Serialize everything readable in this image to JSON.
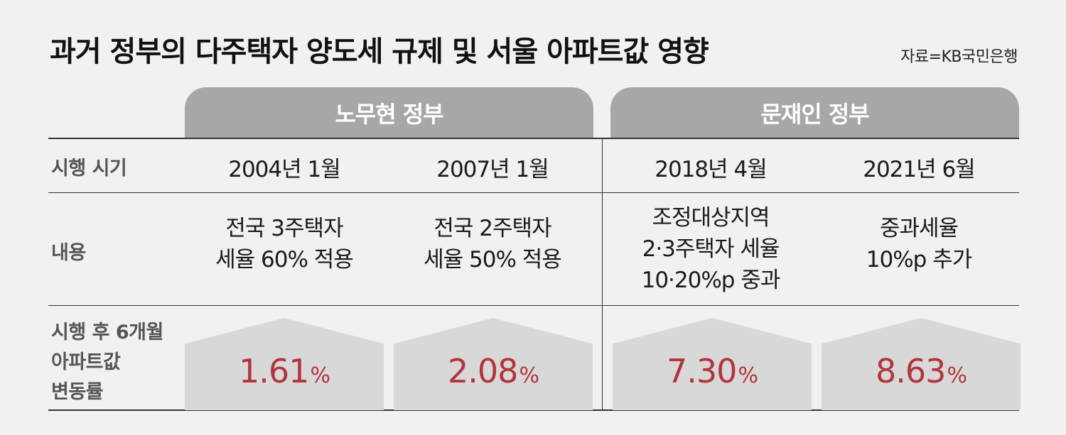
{
  "title": "과거 정부의 다주택자 양도세 규제 및 서울 아파트값 영향",
  "source": "자료=KB국민은행",
  "headers": {
    "roh": "노무현 정부",
    "moon": "문재인 정부"
  },
  "row_labels": {
    "date": "시행 시기",
    "content": "내용",
    "change_line1": "시행 후 6개월",
    "change_line2": "아파트값",
    "change_line3": "변동률"
  },
  "columns": [
    {
      "date": "2004년 1월",
      "content": [
        "전국 3주택자",
        "세율 60% 적용"
      ],
      "rate": "1.61",
      "unit": "%"
    },
    {
      "date": "2007년 1월",
      "content": [
        "전국 2주택자",
        "세율 50% 적용"
      ],
      "rate": "2.08",
      "unit": "%"
    },
    {
      "date": "2018년 4월",
      "content": [
        "조정대상지역",
        "2·3주택자 세율",
        "10·20%p 중과"
      ],
      "rate": "7.30",
      "unit": "%"
    },
    {
      "date": "2021년 6월",
      "content": [
        "중과세율",
        "10%p 추가"
      ],
      "rate": "8.63",
      "unit": "%"
    }
  ],
  "colors": {
    "header_bg": "#a7a7a7",
    "house_bg": "#d8d8d8",
    "rate_text": "#b3343d",
    "page_bg": "#f1f1f1"
  }
}
